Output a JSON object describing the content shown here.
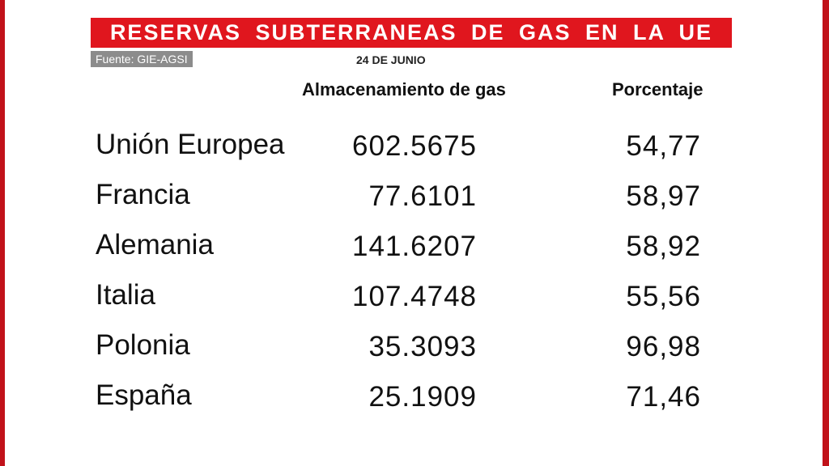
{
  "header": {
    "title": "RESERVAS SUBTERRANEAS DE GAS EN LA UE",
    "source": "Fuente: GIE-AGSI",
    "date": "24 DE JUNIO"
  },
  "columns": {
    "storage": "Almacenamiento de gas",
    "percent": "Porcentaje"
  },
  "rows": [
    {
      "country": "Unión Europea",
      "storage": "602.5675",
      "percent": "54,77"
    },
    {
      "country": "Francia",
      "storage": "77.6101",
      "percent": "58,97"
    },
    {
      "country": "Alemania",
      "storage": "141.6207",
      "percent": "58,92"
    },
    {
      "country": "Italia",
      "storage": "107.4748",
      "percent": "55,56"
    },
    {
      "country": "Polonia",
      "storage": "35.3093",
      "percent": "96,98"
    },
    {
      "country": "España",
      "storage": "25.1909",
      "percent": "71,46"
    }
  ],
  "colors": {
    "title_background": "#e0161e",
    "edge": "#c1121a",
    "source_background": "#8c8c8c"
  }
}
